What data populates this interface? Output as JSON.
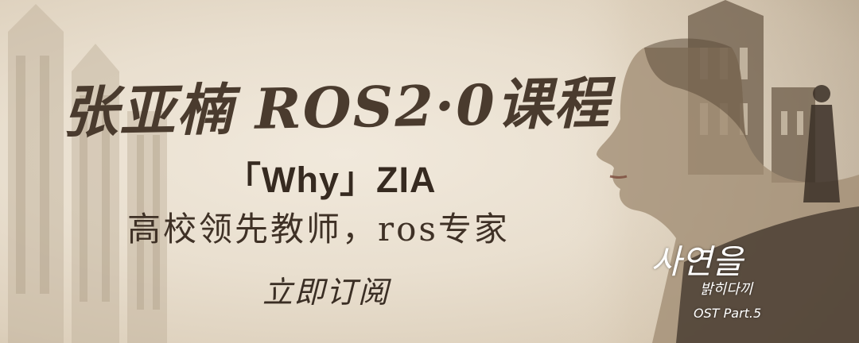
{
  "banner": {
    "title": "张亚楠 ROS2·0课程",
    "subtitle": "「Why」ZIA",
    "tagline": "高校领先教师，ros专家",
    "cta": "立即订阅"
  },
  "artwork": {
    "script_logo": "사연을",
    "script_sub": "밝히다끼",
    "ost_label": "OST Part.5"
  },
  "colors": {
    "background": "#e9dfcf",
    "ink": "#3f3126",
    "highlight_text": "#ffffff"
  }
}
